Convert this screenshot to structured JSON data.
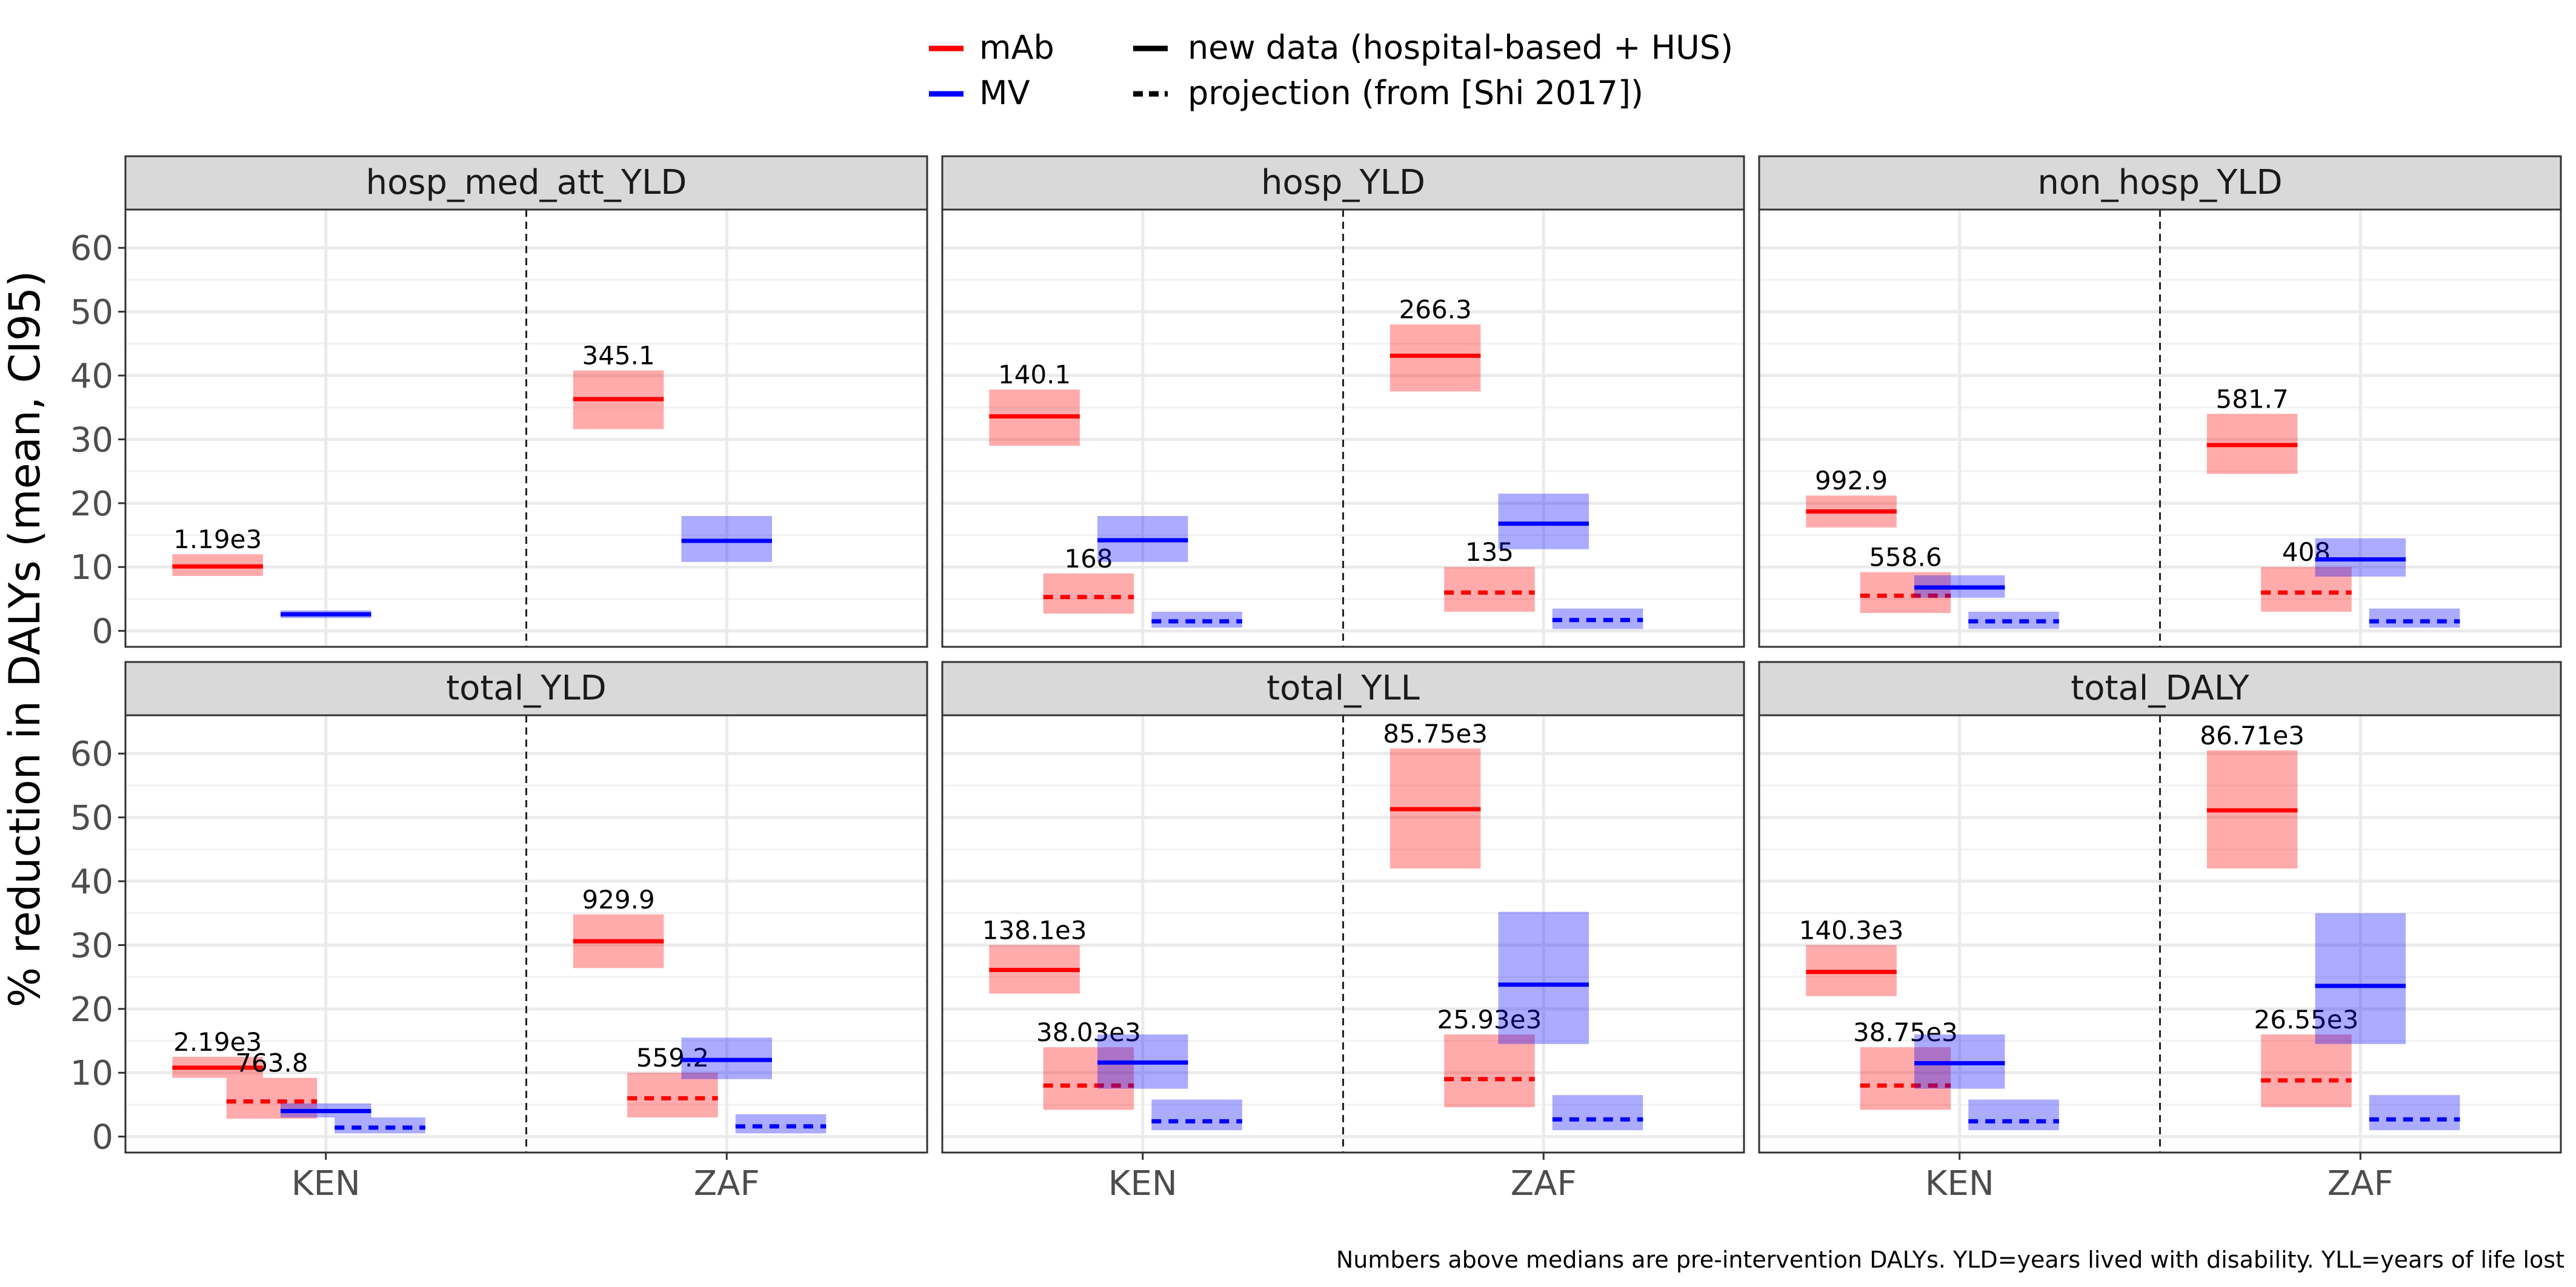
{
  "legend": {
    "colors": [
      {
        "label": "mAb",
        "color": "#ff0000"
      },
      {
        "label": "MV",
        "color": "#0000ff"
      }
    ],
    "linetypes": [
      {
        "label": "new data (hospital-based + HUS)",
        "style": "solid"
      },
      {
        "label": "projection (from [Shi 2017])",
        "style": "dashed"
      }
    ]
  },
  "ylabel": "% reduction in DALYs (mean, CI95)",
  "caption": "Numbers above medians are pre-intervention DALYs. YLD=years lived with disability. YLL=years of life lost",
  "chart_data": {
    "type": "crossbar",
    "ylim": [
      -2.5,
      66
    ],
    "y_ticks": [
      0,
      10,
      20,
      30,
      40,
      50,
      60
    ],
    "x_categories": [
      "KEN",
      "ZAF"
    ],
    "grid": true,
    "legend_position": "top",
    "panels": [
      {
        "name": "hosp_med_att_YLD",
        "bars": [
          {
            "country": "KEN",
            "intervention": "mAb",
            "source": "new",
            "mean": 10.1,
            "low": 8.6,
            "high": 12.0,
            "label": "1.19e3"
          },
          {
            "country": "KEN",
            "intervention": "MV",
            "source": "new",
            "mean": 2.6,
            "low": 2.0,
            "high": 3.2
          },
          {
            "country": "ZAF",
            "intervention": "mAb",
            "source": "new",
            "mean": 36.3,
            "low": 31.6,
            "high": 40.8,
            "label": "345.1"
          },
          {
            "country": "ZAF",
            "intervention": "MV",
            "source": "new",
            "mean": 14.1,
            "low": 10.8,
            "high": 18.0
          }
        ]
      },
      {
        "name": "hosp_YLD",
        "bars": [
          {
            "country": "KEN",
            "intervention": "mAb",
            "source": "new",
            "mean": 33.6,
            "low": 29.0,
            "high": 37.8,
            "label": "140.1"
          },
          {
            "country": "KEN",
            "intervention": "mAb",
            "source": "projection",
            "mean": 5.3,
            "low": 2.7,
            "high": 9.0,
            "label": "168"
          },
          {
            "country": "KEN",
            "intervention": "MV",
            "source": "new",
            "mean": 14.2,
            "low": 10.8,
            "high": 18.0
          },
          {
            "country": "KEN",
            "intervention": "MV",
            "source": "projection",
            "mean": 1.5,
            "low": 0.5,
            "high": 3.0
          },
          {
            "country": "ZAF",
            "intervention": "mAb",
            "source": "new",
            "mean": 43.1,
            "low": 37.5,
            "high": 48.0,
            "label": "266.3"
          },
          {
            "country": "ZAF",
            "intervention": "mAb",
            "source": "projection",
            "mean": 6.0,
            "low": 3.0,
            "high": 10.0,
            "label": "135"
          },
          {
            "country": "ZAF",
            "intervention": "MV",
            "source": "new",
            "mean": 16.8,
            "low": 12.8,
            "high": 21.5
          },
          {
            "country": "ZAF",
            "intervention": "MV",
            "source": "projection",
            "mean": 1.7,
            "low": 0.3,
            "high": 3.5
          }
        ]
      },
      {
        "name": "non_hosp_YLD",
        "bars": [
          {
            "country": "KEN",
            "intervention": "mAb",
            "source": "new",
            "mean": 18.7,
            "low": 16.2,
            "high": 21.2,
            "label": "992.9"
          },
          {
            "country": "KEN",
            "intervention": "mAb",
            "source": "projection",
            "mean": 5.5,
            "low": 2.8,
            "high": 9.2,
            "label": "558.6"
          },
          {
            "country": "KEN",
            "intervention": "MV",
            "source": "new",
            "mean": 6.8,
            "low": 5.2,
            "high": 8.7
          },
          {
            "country": "KEN",
            "intervention": "MV",
            "source": "projection",
            "mean": 1.5,
            "low": 0.3,
            "high": 3.0
          },
          {
            "country": "ZAF",
            "intervention": "mAb",
            "source": "new",
            "mean": 29.1,
            "low": 24.6,
            "high": 34.0,
            "label": "581.7"
          },
          {
            "country": "ZAF",
            "intervention": "mAb",
            "source": "projection",
            "mean": 6.0,
            "low": 3.0,
            "high": 10.0,
            "label": "408"
          },
          {
            "country": "ZAF",
            "intervention": "MV",
            "source": "new",
            "mean": 11.2,
            "low": 8.5,
            "high": 14.5
          },
          {
            "country": "ZAF",
            "intervention": "MV",
            "source": "projection",
            "mean": 1.5,
            "low": 0.5,
            "high": 3.5
          }
        ]
      },
      {
        "name": "total_YLD",
        "bars": [
          {
            "country": "KEN",
            "intervention": "mAb",
            "source": "new",
            "mean": 10.8,
            "low": 9.2,
            "high": 12.5,
            "label": "2.19e3"
          },
          {
            "country": "KEN",
            "intervention": "mAb",
            "source": "projection",
            "mean": 5.5,
            "low": 2.8,
            "high": 9.2,
            "label": "763.8"
          },
          {
            "country": "KEN",
            "intervention": "MV",
            "source": "new",
            "mean": 4.0,
            "low": 3.0,
            "high": 5.2
          },
          {
            "country": "KEN",
            "intervention": "MV",
            "source": "projection",
            "mean": 1.4,
            "low": 0.5,
            "high": 3.0
          },
          {
            "country": "ZAF",
            "intervention": "mAb",
            "source": "new",
            "mean": 30.6,
            "low": 26.4,
            "high": 34.8,
            "label": "929.9"
          },
          {
            "country": "ZAF",
            "intervention": "mAb",
            "source": "projection",
            "mean": 6.0,
            "low": 3.0,
            "high": 10.0,
            "label": "559.2"
          },
          {
            "country": "ZAF",
            "intervention": "MV",
            "source": "new",
            "mean": 12.0,
            "low": 9.0,
            "high": 15.5
          },
          {
            "country": "ZAF",
            "intervention": "MV",
            "source": "projection",
            "mean": 1.6,
            "low": 0.5,
            "high": 3.5
          }
        ]
      },
      {
        "name": "total_YLL",
        "bars": [
          {
            "country": "KEN",
            "intervention": "mAb",
            "source": "new",
            "mean": 26.1,
            "low": 22.4,
            "high": 30.0,
            "label": "138.1e3"
          },
          {
            "country": "KEN",
            "intervention": "mAb",
            "source": "projection",
            "mean": 8.0,
            "low": 4.2,
            "high": 14.0,
            "label": "38.03e3"
          },
          {
            "country": "KEN",
            "intervention": "MV",
            "source": "new",
            "mean": 11.6,
            "low": 7.5,
            "high": 16.0
          },
          {
            "country": "KEN",
            "intervention": "MV",
            "source": "projection",
            "mean": 2.4,
            "low": 1.0,
            "high": 5.8
          },
          {
            "country": "ZAF",
            "intervention": "mAb",
            "source": "new",
            "mean": 51.3,
            "low": 42.0,
            "high": 60.8,
            "label": "85.75e3"
          },
          {
            "country": "ZAF",
            "intervention": "mAb",
            "source": "projection",
            "mean": 9.0,
            "low": 4.6,
            "high": 16.0,
            "label": "25.93e3"
          },
          {
            "country": "ZAF",
            "intervention": "MV",
            "source": "new",
            "mean": 23.8,
            "low": 14.5,
            "high": 35.2
          },
          {
            "country": "ZAF",
            "intervention": "MV",
            "source": "projection",
            "mean": 2.7,
            "low": 1.0,
            "high": 6.5
          }
        ]
      },
      {
        "name": "total_DALY",
        "bars": [
          {
            "country": "KEN",
            "intervention": "mAb",
            "source": "new",
            "mean": 25.8,
            "low": 22.0,
            "high": 30.0,
            "label": "140.3e3"
          },
          {
            "country": "KEN",
            "intervention": "mAb",
            "source": "projection",
            "mean": 8.0,
            "low": 4.2,
            "high": 14.0,
            "label": "38.75e3"
          },
          {
            "country": "KEN",
            "intervention": "MV",
            "source": "new",
            "mean": 11.5,
            "low": 7.5,
            "high": 16.0
          },
          {
            "country": "KEN",
            "intervention": "MV",
            "source": "projection",
            "mean": 2.4,
            "low": 1.0,
            "high": 5.8
          },
          {
            "country": "ZAF",
            "intervention": "mAb",
            "source": "new",
            "mean": 51.1,
            "low": 42.0,
            "high": 60.5,
            "label": "86.71e3"
          },
          {
            "country": "ZAF",
            "intervention": "mAb",
            "source": "projection",
            "mean": 8.8,
            "low": 4.6,
            "high": 16.0,
            "label": "26.55e3"
          },
          {
            "country": "ZAF",
            "intervention": "MV",
            "source": "new",
            "mean": 23.6,
            "low": 14.5,
            "high": 35.0
          },
          {
            "country": "ZAF",
            "intervention": "MV",
            "source": "projection",
            "mean": 2.7,
            "low": 1.0,
            "high": 6.5
          }
        ]
      }
    ]
  }
}
